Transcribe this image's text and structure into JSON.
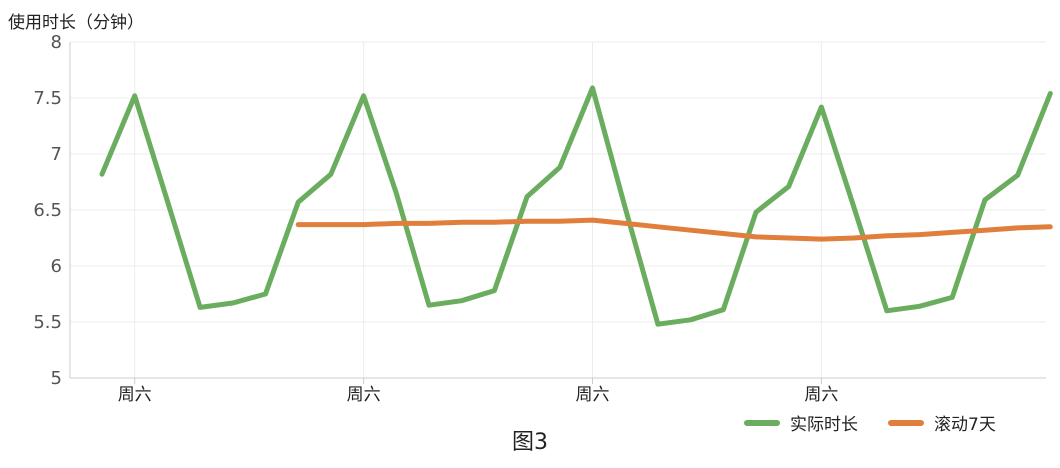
{
  "chart_data": {
    "type": "line",
    "title": "",
    "caption": "图3",
    "ylabel": "使用时长（分钟）",
    "xlabel": "",
    "ylim": [
      5,
      8
    ],
    "yticks": [
      "5",
      "5.5",
      "6",
      "6.5",
      "7",
      "7.5",
      "8"
    ],
    "x_tick_labels": [
      {
        "index": 1,
        "label": "周六"
      },
      {
        "index": 8,
        "label": "周六"
      },
      {
        "index": 15,
        "label": "周六"
      },
      {
        "index": 22,
        "label": "周六"
      }
    ],
    "grid": {
      "horizontal": true,
      "vertical": true
    },
    "legend_position": "bottom-right",
    "series": [
      {
        "name": "实际时长",
        "color": "#6aad5e",
        "values": [
          6.82,
          7.52,
          6.58,
          5.63,
          5.67,
          5.75,
          6.57,
          6.82,
          7.52,
          6.65,
          5.65,
          5.69,
          5.78,
          6.62,
          6.88,
          7.59,
          6.52,
          5.48,
          5.52,
          5.61,
          6.48,
          6.71,
          7.42,
          6.52,
          5.6,
          5.64,
          5.72,
          6.59,
          6.81,
          7.54
        ]
      },
      {
        "name": "滚动7天",
        "color": "#e07f3c",
        "values": [
          null,
          null,
          null,
          null,
          null,
          null,
          6.37,
          6.37,
          6.37,
          6.38,
          6.38,
          6.39,
          6.39,
          6.4,
          6.4,
          6.41,
          6.38,
          6.35,
          6.32,
          6.29,
          6.26,
          6.25,
          6.24,
          6.25,
          6.27,
          6.28,
          6.3,
          6.32,
          6.34,
          6.35
        ]
      }
    ]
  }
}
